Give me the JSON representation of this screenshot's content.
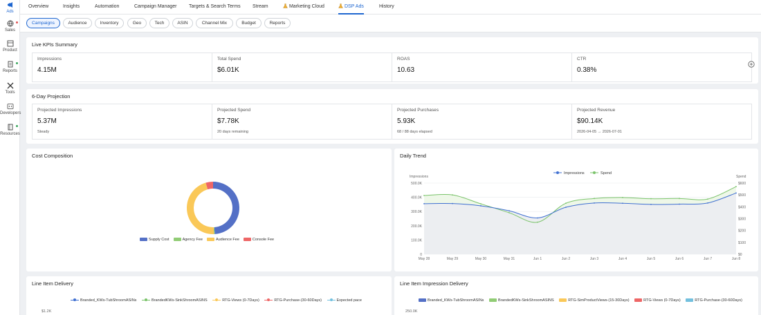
{
  "colors": {
    "accent": "#1e66d0",
    "impressions": "#3f6fd1",
    "spend": "#7ac36a",
    "supply": "#5470c6",
    "agency": "#91cc75",
    "audience": "#fac858",
    "console": "#ee6666",
    "purchase_blue": "#73c0de"
  },
  "sidebar": {
    "items": [
      {
        "label": "Ads",
        "icon": "megaphone-icon"
      },
      {
        "label": "Sales",
        "icon": "globe-icon"
      },
      {
        "label": "Product",
        "icon": "box-icon"
      },
      {
        "label": "Reports",
        "icon": "report-icon"
      },
      {
        "label": "Tools",
        "icon": "tools-icon"
      },
      {
        "label": "Developers",
        "icon": "code-icon"
      },
      {
        "label": "Resources",
        "icon": "book-icon"
      }
    ]
  },
  "topnav": {
    "tabs": [
      {
        "label": "Overview"
      },
      {
        "label": "Insights"
      },
      {
        "label": "Automation"
      },
      {
        "label": "Campaign Manager"
      },
      {
        "label": "Targets & Search Terms"
      },
      {
        "label": "Stream"
      },
      {
        "label": "Marketing Cloud",
        "icon": "flask-icon"
      },
      {
        "label": "DSP Ads",
        "icon": "flask-icon",
        "active": true
      },
      {
        "label": "History"
      }
    ]
  },
  "subnav": {
    "pills": [
      {
        "label": "Campaigns",
        "active": true
      },
      {
        "label": "Audience"
      },
      {
        "label": "Inventory"
      },
      {
        "label": "Geo"
      },
      {
        "label": "Tech"
      },
      {
        "label": "ASIN"
      },
      {
        "label": "Channel Mix"
      },
      {
        "label": "Budget"
      },
      {
        "label": "Reports"
      }
    ]
  },
  "live_kpis": {
    "title": "Live KPIs Summary",
    "items": [
      {
        "label": "Impressions",
        "value": "4.15M"
      },
      {
        "label": "Total Spend",
        "value": "$6.01K"
      },
      {
        "label": "ROAS",
        "value": "10.63"
      },
      {
        "label": "CTR",
        "value": "0.38%"
      }
    ]
  },
  "projection": {
    "title": "6-Day Projection",
    "items": [
      {
        "label": "Projected Impressions",
        "value": "5.37M",
        "sub": "Steady"
      },
      {
        "label": "Projected Spend",
        "value": "$7.78K",
        "sub": "20 days remaining"
      },
      {
        "label": "Projected Purchases",
        "value": "5.93K",
        "sub": "68 / 88 days elapsed"
      },
      {
        "label": "Projected Revenue",
        "value": "$90.14K",
        "sub": "2026-04-05 → 2026-07-01"
      }
    ]
  },
  "cost_composition": {
    "title": "Cost Composition"
  },
  "daily_trend": {
    "title": "Daily Trend"
  },
  "line_item_delivery": {
    "title": "Line Item Delivery",
    "legend": [
      {
        "label": "Branded_KWs-TubShroomASINs",
        "color": "#3f6fd1"
      },
      {
        "label": "BrandedKWs-SinkShroomASINS",
        "color": "#7ac36a"
      },
      {
        "label": "RTG-Views (0-7Days)",
        "color": "#fac858"
      },
      {
        "label": "RTG-Purchase-(30-60Days)",
        "color": "#ee6666"
      },
      {
        "label": "Expected pace",
        "color": "#73c0de"
      }
    ],
    "y_tick": "$1.2K"
  },
  "line_item_impressions": {
    "title": "Line Item Impression Delivery",
    "legend": [
      {
        "label": "Branded_KWs-TubShroomASINs",
        "color": "#5470c6"
      },
      {
        "label": "BrandedKWs-SinkShroomASINS",
        "color": "#91cc75"
      },
      {
        "label": "RTG-SimProductViews-(15-30Days)",
        "color": "#fac858"
      },
      {
        "label": "RTG-Views (0-7Days)",
        "color": "#ee6666"
      },
      {
        "label": "RTG-Purchase-(30-60Days)",
        "color": "#73c0de"
      }
    ],
    "y_tick": "250.0K"
  },
  "chart_data": [
    {
      "type": "pie",
      "title": "Cost Composition",
      "donut": true,
      "categories": [
        "Supply Cost",
        "Agency Fee",
        "Audience Fee",
        "Console Fee"
      ],
      "values": [
        49,
        0.5,
        46,
        4.5
      ],
      "legend_position": "bottom"
    },
    {
      "type": "line",
      "title": "Daily Trend",
      "categories": [
        "May 28",
        "May 29",
        "May 30",
        "May 31",
        "Jun 1",
        "Jun 2",
        "Jun 3",
        "Jun 4",
        "Jun 5",
        "Jun 6",
        "Jun 7",
        "Jun 8"
      ],
      "series": [
        {
          "name": "Impressions",
          "axis": "left",
          "values": [
            355000,
            356000,
            340000,
            305000,
            255000,
            330000,
            360000,
            358000,
            350000,
            352000,
            360000,
            430000
          ]
        },
        {
          "name": "Spend",
          "axis": "right",
          "values": [
            495,
            500,
            425,
            350,
            270,
            430,
            470,
            478,
            468,
            470,
            465,
            570
          ]
        }
      ],
      "ylabel": "Impressions",
      "y2label": "Spend",
      "ylim": [
        0,
        500000
      ],
      "y_ticks": [
        "0",
        "100.0K",
        "200.0K",
        "300.0K",
        "400.0K",
        "500.0K"
      ],
      "y2lim": [
        0,
        600
      ],
      "y2_ticks": [
        "$0",
        "$100",
        "$200",
        "$300",
        "$400",
        "$500",
        "$600"
      ],
      "legend_position": "top",
      "grid": true
    }
  ]
}
